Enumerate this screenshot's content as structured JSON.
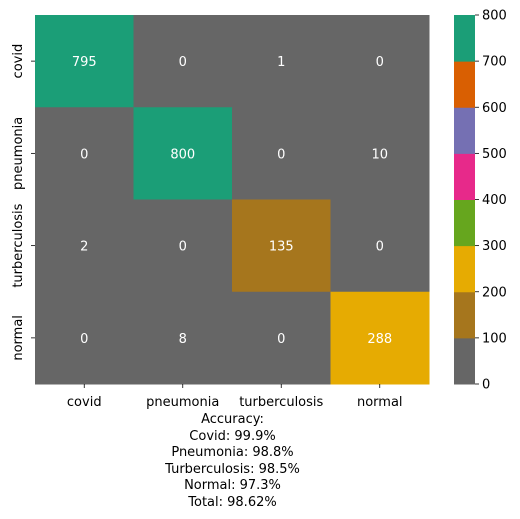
{
  "chart_data": {
    "type": "heatmap",
    "row_labels": [
      "covid",
      "pneumonia",
      "turberculosis",
      "normal"
    ],
    "col_labels": [
      "covid",
      "pneumonia",
      "turberculosis",
      "normal"
    ],
    "values": [
      [
        795,
        0,
        1,
        0
      ],
      [
        0,
        800,
        0,
        10
      ],
      [
        2,
        0,
        135,
        0
      ],
      [
        0,
        8,
        0,
        288
      ]
    ],
    "colorbar": {
      "min": 0,
      "max": 800,
      "ticks": [
        "0",
        "100",
        "200",
        "300",
        "400",
        "500",
        "600",
        "700",
        "800"
      ],
      "colormap": "Dark2",
      "colors": [
        "#666666",
        "#a6761d",
        "#e6ab02",
        "#66a61e",
        "#e7298a",
        "#7570b3",
        "#d95f02",
        "#1b9e77"
      ]
    },
    "annotation_color": "#ffffff",
    "grid": false
  },
  "footer": {
    "lines": [
      "Accuracy:",
      "Covid: 99.9%",
      "Pneumonia: 98.8%",
      "Turberculosis: 98.5%",
      "Normal: 97.3%",
      "Total: 98.62%"
    ]
  }
}
